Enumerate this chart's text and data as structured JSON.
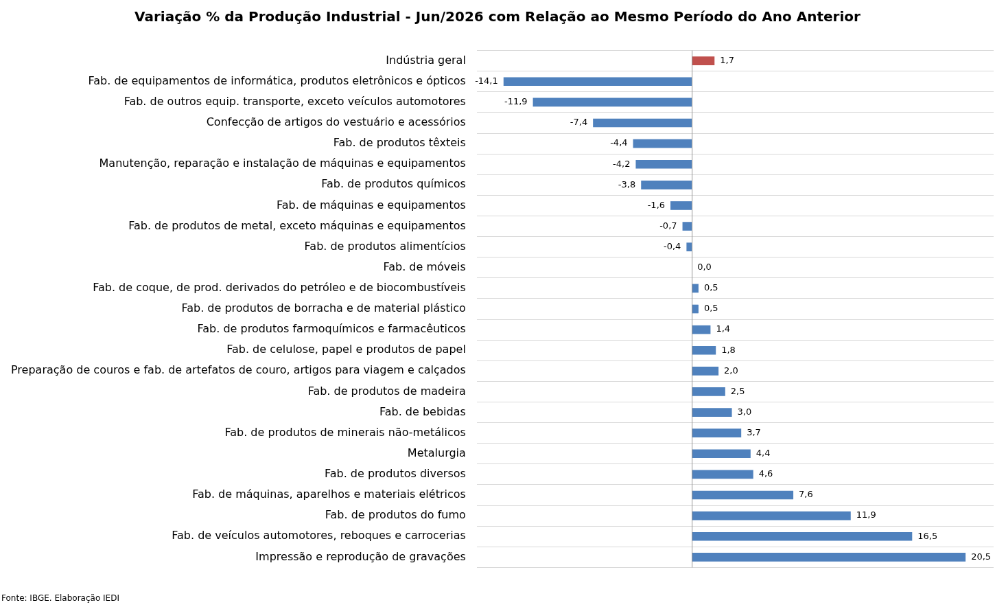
{
  "chart_data": {
    "type": "bar",
    "orientation": "horizontal",
    "title": "Variação % da Produção Industrial - Jun/2026 com Relação ao Mesmo Período do Ano Anterior",
    "categories": [
      "Indústria geral",
      "Fab. de equipamentos de informática, produtos eletrônicos e ópticos",
      "Fab. de outros equip. transporte, exceto veículos automotores",
      "Confecção de artigos do vestuário e acessórios",
      "Fab. de produtos têxteis",
      "Manutenção, reparação e instalação de máquinas e equipamentos",
      "Fab. de produtos químicos",
      "Fab. de máquinas e equipamentos",
      "Fab. de produtos de metal, exceto máquinas e equipamentos",
      "Fab. de produtos alimentícios",
      "Fab. de móveis",
      "Fab. de coque, de prod. derivados do petróleo e de biocombustíveis",
      "Fab. de produtos de borracha e de material plástico",
      "Fab. de produtos farmoquímicos e farmacêuticos",
      "Fab. de celulose, papel e produtos de papel",
      "Preparação de couros e fab. de artefatos de couro, artigos para viagem e calçados",
      "Fab. de produtos de madeira",
      "Fab. de bebidas",
      "Fab. de produtos de minerais não-metálicos",
      "Metalurgia",
      "Fab. de produtos diversos",
      "Fab. de máquinas, aparelhos e materiais elétricos",
      "Fab. de produtos do fumo",
      "Fab. de veículos automotores, reboques e carrocerias",
      "Impressão e reprodução de gravações"
    ],
    "values": [
      1.7,
      -14.1,
      -11.9,
      -7.4,
      -4.4,
      -4.2,
      -3.8,
      -1.6,
      -0.7,
      -0.4,
      0.0,
      0.5,
      0.5,
      1.4,
      1.8,
      2.0,
      2.5,
      3.0,
      3.7,
      4.4,
      4.6,
      7.6,
      11.9,
      16.5,
      20.5
    ],
    "value_labels": [
      "1,7",
      "-14,1",
      "-11,9",
      "-7,4",
      "-4,4",
      "-4,2",
      "-3,8",
      "-1,6",
      "-0,7",
      "-0,4",
      "0,0",
      "0,5",
      "0,5",
      "1,4",
      "1,8",
      "2,0",
      "2,5",
      "3,0",
      "3,7",
      "4,4",
      "4,6",
      "7,6",
      "11,9",
      "16,5",
      "20,5"
    ],
    "colors": [
      "#c0504d",
      "#4f81bd",
      "#4f81bd",
      "#4f81bd",
      "#4f81bd",
      "#4f81bd",
      "#4f81bd",
      "#4f81bd",
      "#4f81bd",
      "#4f81bd",
      "#4f81bd",
      "#4f81bd",
      "#4f81bd",
      "#4f81bd",
      "#4f81bd",
      "#4f81bd",
      "#4f81bd",
      "#4f81bd",
      "#4f81bd",
      "#4f81bd",
      "#4f81bd",
      "#4f81bd",
      "#4f81bd",
      "#4f81bd",
      "#4f81bd"
    ],
    "xlim": [
      -16.1,
      22.6
    ],
    "tick_labels": "y",
    "grid": "y",
    "legend": false,
    "annotations": [
      "Fonte: IBGE. Elaboração IEDI"
    ]
  }
}
